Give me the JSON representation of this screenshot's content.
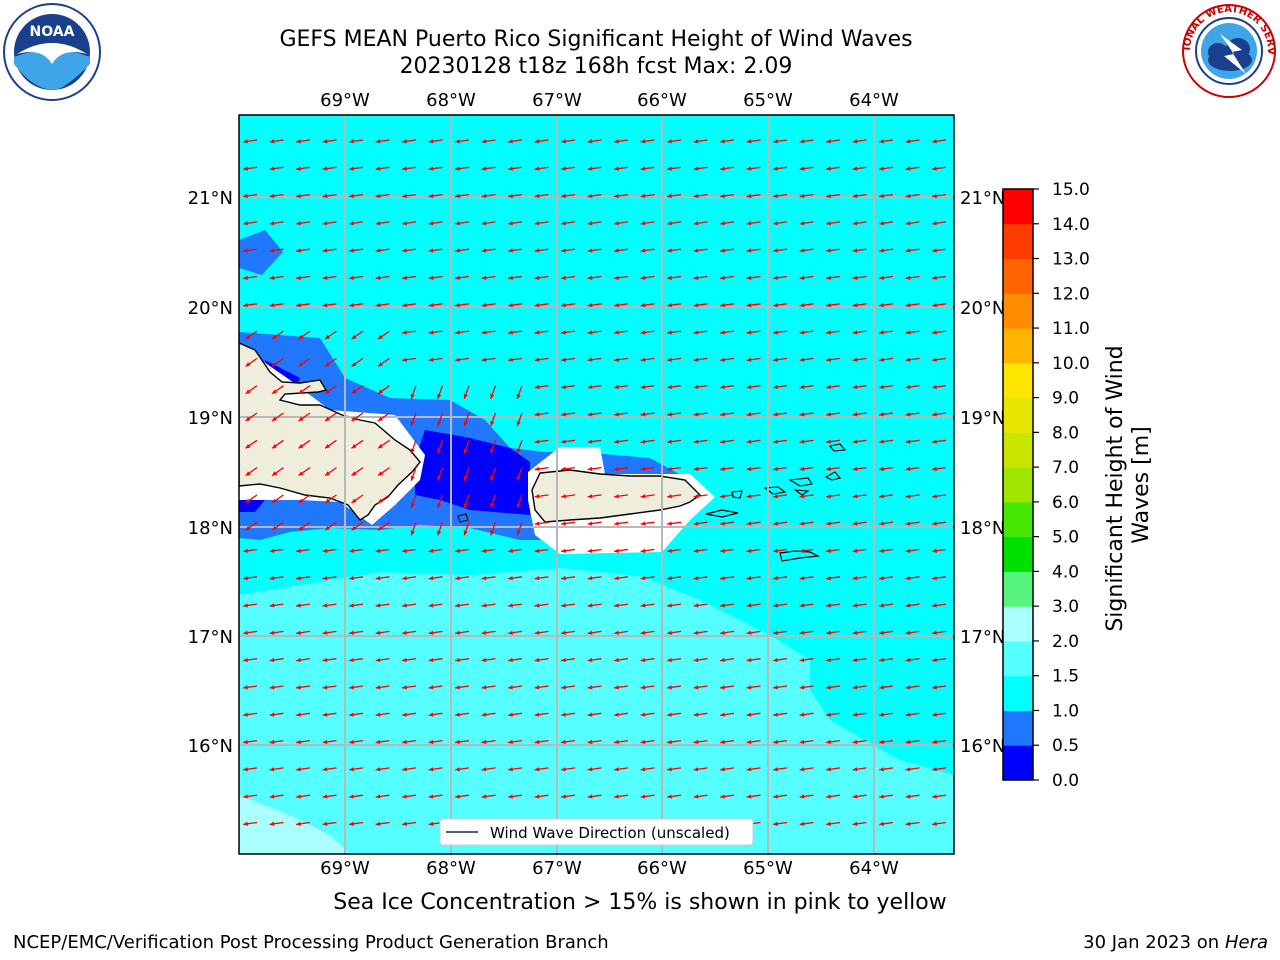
{
  "header": {
    "title_line1": "GEFS MEAN Puerto Rico Significant Height of Wind Waves",
    "title_line2": "20230128 t18z 168h fcst   Max: 2.09"
  },
  "map": {
    "lon_labels": [
      "69°W",
      "68°W",
      "67°W",
      "66°W",
      "65°W",
      "64°W"
    ],
    "lat_labels": [
      "21°N",
      "20°N",
      "19°N",
      "18°N",
      "17°N",
      "16°N"
    ],
    "colors": {
      "ocean_high": "#00ffff",
      "ocean_mid": "#55ffff",
      "ocean_light": "#aaffff",
      "shallow": "#1f78ff",
      "deep": "#0000ff",
      "land": "#efeddc",
      "arrow": "#ff0000",
      "grid": "#b8b8b8"
    },
    "legend_label": "Wind Wave Direction (unscaled)"
  },
  "colorbar": {
    "title": "Significant Height of Wind Waves [m]",
    "tick_labels": [
      "0.0",
      "0.5",
      "1.0",
      "1.5",
      "2.0",
      "3.0",
      "4.0",
      "5.0",
      "6.0",
      "7.0",
      "8.0",
      "9.0",
      "10.0",
      "11.0",
      "12.0",
      "13.0",
      "14.0",
      "15.0"
    ],
    "colors": [
      "#0000ff",
      "#1e78ff",
      "#00ffff",
      "#55ffff",
      "#aaffff",
      "#55f57d",
      "#00e000",
      "#45e600",
      "#a0e600",
      "#c8e600",
      "#e6e600",
      "#ffe600",
      "#ffb400",
      "#ff8c00",
      "#ff6400",
      "#ff3c00",
      "#ff0000"
    ]
  },
  "caption": "Sea Ice Concentration > 15% is shown in pink to yellow",
  "footer": {
    "left": "NCEP/EMC/Verification Post Processing Product Generation Branch",
    "right_date": "30 Jan 2023 on ",
    "right_host": "Hera"
  },
  "logos": {
    "noaa_text": "NOAA",
    "nws_text": "NATIONAL WEATHER SERVICE"
  }
}
